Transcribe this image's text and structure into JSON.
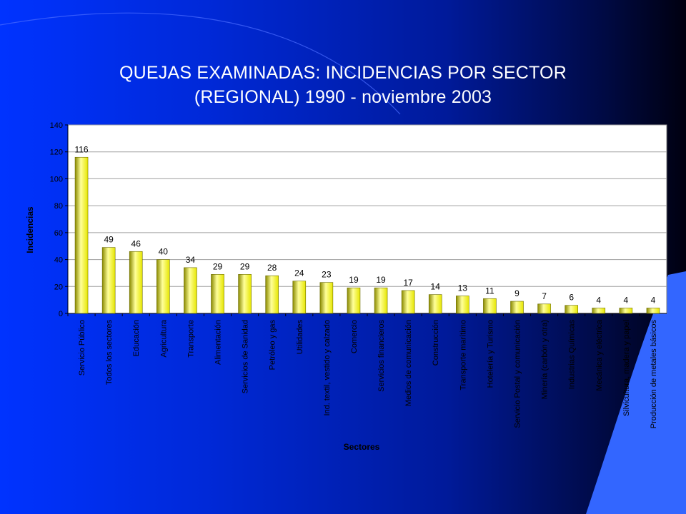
{
  "chart_data": {
    "type": "bar",
    "title_line1": "QUEJAS EXAMINADAS: INCIDENCIAS POR SECTOR",
    "title_line2": "(REGIONAL)  1990 - noviembre 2003",
    "xlabel": "Sectores",
    "ylabel": "Incidencias",
    "ylim": [
      0,
      140
    ],
    "yticks": [
      0,
      20,
      40,
      60,
      80,
      100,
      120,
      140
    ],
    "grid": true,
    "categories": [
      "Servicio Público",
      "Todos los sectores",
      "Educación",
      "Agricultura",
      "Transporte",
      "Alimentación",
      "Servicios de Sanidad",
      "Petróleo y gas",
      "Utilidades",
      "Ind. textil, vestido y calzado",
      "Comercio",
      "Servicios financieros",
      "Medios de comunicación",
      "Construcción",
      "Transporte marítimo",
      "Hotelería y Turismo",
      "Servicio Postal y comunicación",
      "Minería (carbón y otra)",
      "Industrias Químicas",
      "Mecánica y eléctrica",
      "Silvicultura, madera y papel",
      "Producción de metales básicos"
    ],
    "values": [
      116,
      49,
      46,
      40,
      34,
      29,
      29,
      28,
      24,
      23,
      19,
      19,
      17,
      14,
      13,
      11,
      9,
      7,
      6,
      4,
      4,
      4
    ],
    "colors": {
      "bar": "#e6e600",
      "bar_light": "#ffff99",
      "bar_dark": "#8a8a00",
      "plot_background": "#ffffff",
      "gridline": "#a0a0a0",
      "text": "#000000"
    }
  }
}
